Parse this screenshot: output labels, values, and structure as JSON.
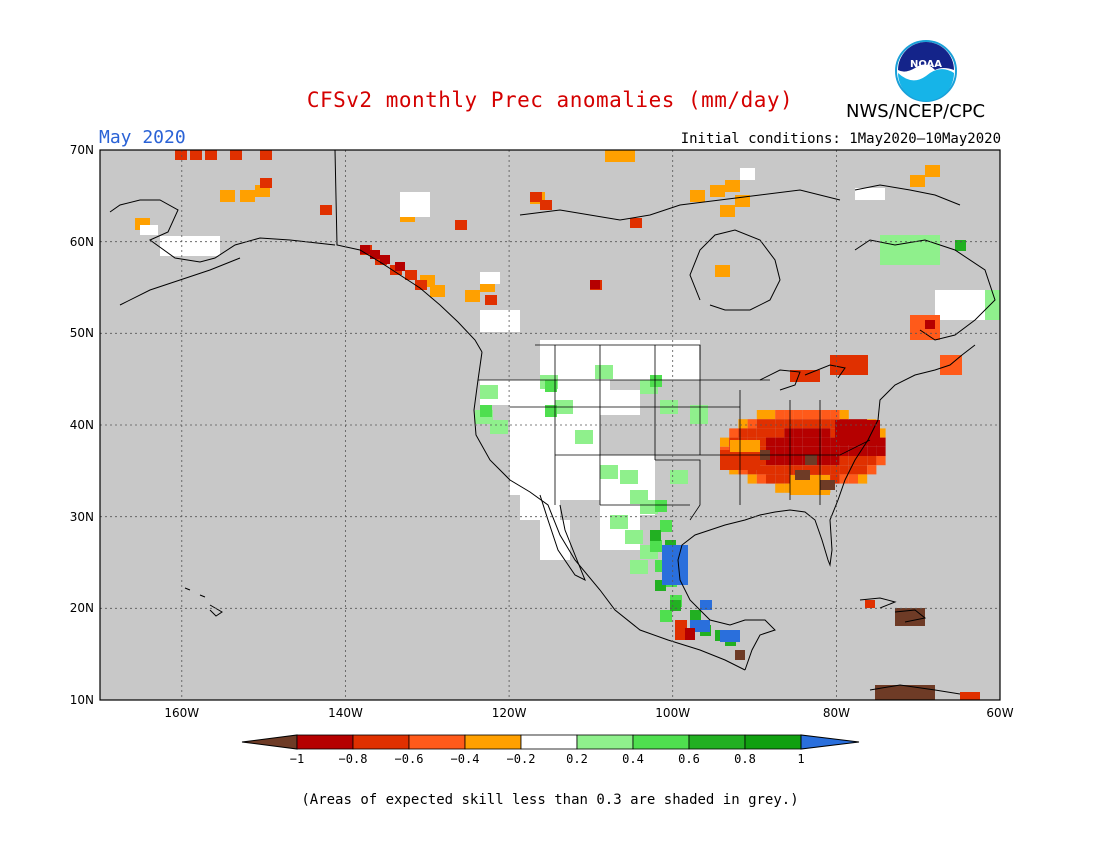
{
  "title": "CFSv2 monthly Prec anomalies (mm/day)",
  "agency": "NWS/NCEP/CPC",
  "logo_text": "NOAA",
  "month_label": "May 2020",
  "initial_conditions": "Initial conditions: 1May2020–10May2020",
  "footnote": "(Areas of expected skill less than 0.3 are shaded in grey.)",
  "map": {
    "region": "North America",
    "lon_range": [
      -170,
      -60
    ],
    "lat_range": [
      10,
      70
    ],
    "background_color": "#c8c8c8",
    "lat_labels": [
      "70N",
      "60N",
      "50N",
      "40N",
      "30N",
      "20N",
      "10N"
    ],
    "lon_labels": [
      "160W",
      "140W",
      "120W",
      "100W",
      "80W",
      "60W"
    ]
  },
  "colorbar": {
    "tick_labels": [
      "−1",
      "−0.8",
      "−0.6",
      "−0.4",
      "−0.2",
      "0.2",
      "0.4",
      "0.6",
      "0.8",
      "1"
    ],
    "colors": [
      "#6e3b26",
      "#b50000",
      "#e03000",
      "#ff5a1a",
      "#ffa000",
      "#ffffff",
      "#8ff08c",
      "#4fdf4f",
      "#22b022",
      "#10a010",
      "#2a6fdc"
    ]
  },
  "anomaly_regions": [
    {
      "name": "ohio-valley-negative",
      "color": "#e03000"
    },
    {
      "name": "mid-atlantic-strong-negative",
      "color": "#b50000"
    },
    {
      "name": "southwest-neutral",
      "color": "#ffffff"
    },
    {
      "name": "texas-gulf-positive",
      "color": "#2a6fdc"
    },
    {
      "name": "mexico-positive",
      "color": "#22b022"
    }
  ]
}
